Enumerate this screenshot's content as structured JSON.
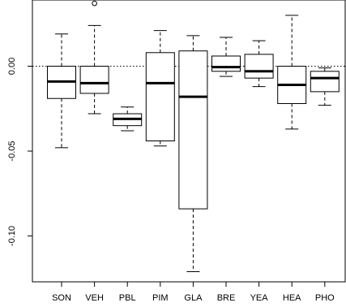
{
  "chart_data": {
    "type": "box",
    "title": "",
    "xlabel": "",
    "ylabel": "",
    "categories": [
      "SON",
      "VEH",
      "PBL",
      "PIM",
      "GLA",
      "BRE",
      "YEA",
      "HEA",
      "PHO"
    ],
    "ylim": [
      -0.127,
      0.039
    ],
    "yticks": [
      0.0,
      -0.05,
      -0.1
    ],
    "ytick_labels": [
      "0.00",
      "-0.05",
      "-0.10"
    ],
    "reference_line": {
      "y": 0.0,
      "style": "dotted"
    },
    "boxes": [
      {
        "category": "SON",
        "whisker_low": -0.048,
        "q1": -0.019,
        "median": -0.009,
        "q3": 0.0,
        "whisker_high": 0.019,
        "outliers": []
      },
      {
        "category": "VEH",
        "whisker_low": -0.028,
        "q1": -0.016,
        "median": -0.01,
        "q3": 0.0,
        "whisker_high": 0.024,
        "outliers": [
          0.037
        ]
      },
      {
        "category": "PBL",
        "whisker_low": -0.038,
        "q1": -0.035,
        "median": -0.031,
        "q3": -0.028,
        "whisker_high": -0.024,
        "outliers": []
      },
      {
        "category": "PIM",
        "whisker_low": -0.047,
        "q1": -0.044,
        "median": -0.01,
        "q3": 0.008,
        "whisker_high": 0.021,
        "outliers": []
      },
      {
        "category": "GLA",
        "whisker_low": -0.121,
        "q1": -0.084,
        "median": -0.018,
        "q3": 0.009,
        "whisker_high": 0.018,
        "outliers": []
      },
      {
        "category": "BRE",
        "whisker_low": -0.006,
        "q1": -0.003,
        "median": -0.0005,
        "q3": 0.006,
        "whisker_high": 0.017,
        "outliers": []
      },
      {
        "category": "YEA",
        "whisker_low": -0.012,
        "q1": -0.007,
        "median": -0.003,
        "q3": 0.007,
        "whisker_high": 0.015,
        "outliers": []
      },
      {
        "category": "HEA",
        "whisker_low": -0.037,
        "q1": -0.022,
        "median": -0.011,
        "q3": 0.0,
        "whisker_high": 0.03,
        "outliers": []
      },
      {
        "category": "PHO",
        "whisker_low": -0.023,
        "q1": -0.015,
        "median": -0.007,
        "q3": -0.003,
        "whisker_high": -0.001,
        "outliers": []
      }
    ],
    "grid": false,
    "legend": "none"
  }
}
